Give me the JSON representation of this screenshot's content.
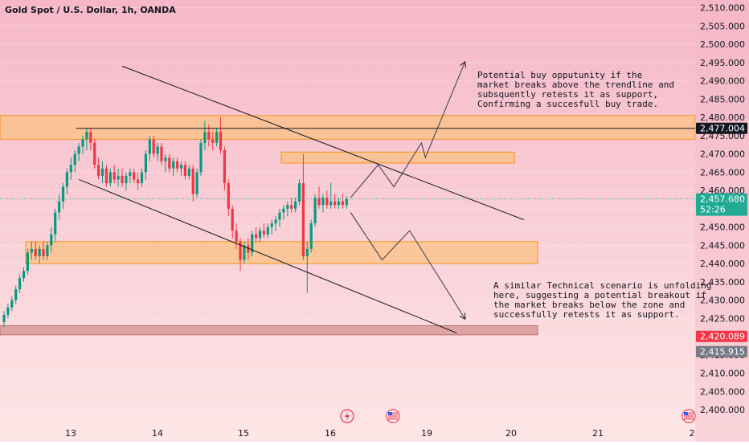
{
  "header": {
    "title": "Gold Spot / U.S. Dollar, 1h, OANDA"
  },
  "notes": {
    "buy": [
      "Potential buy opputunity if the",
      "market breaks above the trendline and",
      "subsquently retests it as support,",
      "Confirming a succesfull buy trade."
    ],
    "sell": [
      "A similar Technical scenario is unfolding",
      "here, suggesting a potential breakout if",
      "the market breaks below the zone and",
      "successfully retests it as support."
    ]
  },
  "price_labels": {
    "resistance": "2,477.004",
    "current": "2,457.680",
    "countdown": "52:26",
    "red": "2,420.089",
    "gray": "2,415.915"
  },
  "colors": {
    "bg_top": "#f6b8c8",
    "bg_bottom": "#fde6e6",
    "zone_orange": "#fbbf6f",
    "zone_border": "#f7931a",
    "zone_red": "#d89a9a",
    "candle_up": "#089981",
    "candle_down": "#f23645",
    "line": "#131722",
    "current_label": "#22ab94",
    "red_label": "#f23645",
    "gray_label": "#787b86"
  },
  "icons": [
    "lightning-icon",
    "us-flag-icon",
    "us-flag-icon"
  ],
  "chart_data": {
    "type": "candlestick",
    "title": "Gold Spot / U.S. Dollar, 1h, OANDA",
    "x_ticks": [
      "13",
      "14",
      "15",
      "16",
      "19",
      "20",
      "21",
      "2"
    ],
    "y_ticks": [
      "2,400.000",
      "2,405.000",
      "2,410.000",
      "2,415.000",
      "2,420.000",
      "2,425.000",
      "2,430.000",
      "2,435.000",
      "2,440.000",
      "2,445.000",
      "2,450.000",
      "2,455.000",
      "2,460.000",
      "2,465.000",
      "2,470.000",
      "2,475.000",
      "2,480.000",
      "2,485.000",
      "2,490.000",
      "2,495.000",
      "2,500.000",
      "2,505.000",
      "2,510.000"
    ],
    "ylim": [
      2398.5,
      2511
    ],
    "candles": [
      {
        "i": 0,
        "o": 2424.0,
        "h": 2427.0,
        "l": 2422.5,
        "c": 2426.0
      },
      {
        "i": 1,
        "o": 2426.0,
        "h": 2429.0,
        "l": 2425.0,
        "c": 2428.0
      },
      {
        "i": 2,
        "o": 2428.0,
        "h": 2431.0,
        "l": 2427.0,
        "c": 2430.0
      },
      {
        "i": 3,
        "o": 2430.0,
        "h": 2434.0,
        "l": 2429.0,
        "c": 2433.0
      },
      {
        "i": 4,
        "o": 2433.0,
        "h": 2437.0,
        "l": 2432.0,
        "c": 2436.0
      },
      {
        "i": 5,
        "o": 2436.0,
        "h": 2439.0,
        "l": 2435.0,
        "c": 2438.0
      },
      {
        "i": 6,
        "o": 2438.0,
        "h": 2444.0,
        "l": 2437.0,
        "c": 2443.0
      },
      {
        "i": 7,
        "o": 2443.0,
        "h": 2446.0,
        "l": 2441.0,
        "c": 2444.0
      },
      {
        "i": 8,
        "o": 2444.0,
        "h": 2446.0,
        "l": 2441.0,
        "c": 2442.0
      },
      {
        "i": 9,
        "o": 2442.0,
        "h": 2445.0,
        "l": 2440.0,
        "c": 2444.0
      },
      {
        "i": 10,
        "o": 2444.0,
        "h": 2446.0,
        "l": 2441.0,
        "c": 2442.0
      },
      {
        "i": 11,
        "o": 2442.0,
        "h": 2446.0,
        "l": 2441.0,
        "c": 2445.0
      },
      {
        "i": 12,
        "o": 2445.0,
        "h": 2450.0,
        "l": 2443.0,
        "c": 2448.0
      },
      {
        "i": 13,
        "o": 2448.0,
        "h": 2455.0,
        "l": 2446.0,
        "c": 2454.0
      },
      {
        "i": 14,
        "o": 2454.0,
        "h": 2459.0,
        "l": 2452.0,
        "c": 2457.0
      },
      {
        "i": 15,
        "o": 2457.0,
        "h": 2462.0,
        "l": 2455.0,
        "c": 2461.0
      },
      {
        "i": 16,
        "o": 2461.0,
        "h": 2466.0,
        "l": 2459.0,
        "c": 2465.0
      },
      {
        "i": 17,
        "o": 2465.0,
        "h": 2469.0,
        "l": 2463.0,
        "c": 2467.0
      },
      {
        "i": 18,
        "o": 2467.0,
        "h": 2471.0,
        "l": 2465.0,
        "c": 2470.0
      },
      {
        "i": 19,
        "o": 2470.0,
        "h": 2473.0,
        "l": 2468.0,
        "c": 2472.0
      },
      {
        "i": 20,
        "o": 2472.0,
        "h": 2475.0,
        "l": 2470.0,
        "c": 2474.0
      },
      {
        "i": 21,
        "o": 2474.0,
        "h": 2477.0,
        "l": 2471.0,
        "c": 2476.0
      },
      {
        "i": 22,
        "o": 2476.0,
        "h": 2477.0,
        "l": 2471.0,
        "c": 2473.0
      },
      {
        "i": 23,
        "o": 2473.0,
        "h": 2474.0,
        "l": 2466.0,
        "c": 2467.0
      },
      {
        "i": 24,
        "o": 2467.0,
        "h": 2469.0,
        "l": 2463.0,
        "c": 2464.0
      },
      {
        "i": 25,
        "o": 2464.0,
        "h": 2468.0,
        "l": 2462.0,
        "c": 2466.0
      },
      {
        "i": 26,
        "o": 2466.0,
        "h": 2467.0,
        "l": 2461.0,
        "c": 2462.0
      },
      {
        "i": 27,
        "o": 2462.0,
        "h": 2466.0,
        "l": 2461.0,
        "c": 2465.0
      },
      {
        "i": 28,
        "o": 2465.0,
        "h": 2467.0,
        "l": 2462.0,
        "c": 2463.0
      },
      {
        "i": 29,
        "o": 2463.0,
        "h": 2466.0,
        "l": 2461.0,
        "c": 2464.0
      },
      {
        "i": 30,
        "o": 2464.0,
        "h": 2466.0,
        "l": 2461.0,
        "c": 2462.0
      },
      {
        "i": 31,
        "o": 2462.0,
        "h": 2465.0,
        "l": 2460.0,
        "c": 2464.0
      },
      {
        "i": 32,
        "o": 2464.0,
        "h": 2466.0,
        "l": 2462.0,
        "c": 2465.0
      },
      {
        "i": 33,
        "o": 2465.0,
        "h": 2466.0,
        "l": 2462.0,
        "c": 2463.0
      },
      {
        "i": 34,
        "o": 2463.0,
        "h": 2465.0,
        "l": 2460.0,
        "c": 2462.0
      },
      {
        "i": 35,
        "o": 2462.0,
        "h": 2466.0,
        "l": 2461.0,
        "c": 2465.0
      },
      {
        "i": 36,
        "o": 2465.0,
        "h": 2471.0,
        "l": 2463.0,
        "c": 2470.0
      },
      {
        "i": 37,
        "o": 2470.0,
        "h": 2475.0,
        "l": 2468.0,
        "c": 2474.0
      },
      {
        "i": 38,
        "o": 2474.0,
        "h": 2475.0,
        "l": 2469.0,
        "c": 2470.0
      },
      {
        "i": 39,
        "o": 2470.0,
        "h": 2473.0,
        "l": 2468.0,
        "c": 2472.0
      },
      {
        "i": 40,
        "o": 2472.0,
        "h": 2473.0,
        "l": 2467.0,
        "c": 2468.0
      },
      {
        "i": 41,
        "o": 2468.0,
        "h": 2470.0,
        "l": 2465.0,
        "c": 2469.0
      },
      {
        "i": 42,
        "o": 2469.0,
        "h": 2470.0,
        "l": 2465.0,
        "c": 2466.0
      },
      {
        "i": 43,
        "o": 2466.0,
        "h": 2469.0,
        "l": 2464.0,
        "c": 2468.0
      },
      {
        "i": 44,
        "o": 2468.0,
        "h": 2469.0,
        "l": 2465.0,
        "c": 2466.0
      },
      {
        "i": 45,
        "o": 2466.0,
        "h": 2468.0,
        "l": 2464.0,
        "c": 2467.0
      },
      {
        "i": 46,
        "o": 2467.0,
        "h": 2468.0,
        "l": 2463.0,
        "c": 2464.0
      },
      {
        "i": 47,
        "o": 2464.0,
        "h": 2467.0,
        "l": 2463.0,
        "c": 2466.0
      },
      {
        "i": 48,
        "o": 2466.0,
        "h": 2467.0,
        "l": 2457.0,
        "c": 2459.0
      },
      {
        "i": 49,
        "o": 2459.0,
        "h": 2466.0,
        "l": 2458.0,
        "c": 2465.0
      },
      {
        "i": 50,
        "o": 2465.0,
        "h": 2474.0,
        "l": 2464.0,
        "c": 2473.0
      },
      {
        "i": 51,
        "o": 2473.0,
        "h": 2479.0,
        "l": 2471.0,
        "c": 2476.0
      },
      {
        "i": 52,
        "o": 2476.0,
        "h": 2478.0,
        "l": 2472.0,
        "c": 2474.0
      },
      {
        "i": 53,
        "o": 2474.0,
        "h": 2476.0,
        "l": 2471.0,
        "c": 2473.0
      },
      {
        "i": 54,
        "o": 2473.0,
        "h": 2477.0,
        "l": 2472.0,
        "c": 2476.0
      },
      {
        "i": 55,
        "o": 2476.0,
        "h": 2480.0,
        "l": 2470.0,
        "c": 2471.0
      },
      {
        "i": 56,
        "o": 2471.0,
        "h": 2472.0,
        "l": 2460.0,
        "c": 2462.0
      },
      {
        "i": 57,
        "o": 2462.0,
        "h": 2463.0,
        "l": 2453.0,
        "c": 2455.0
      },
      {
        "i": 58,
        "o": 2455.0,
        "h": 2456.0,
        "l": 2447.0,
        "c": 2449.0
      },
      {
        "i": 59,
        "o": 2449.0,
        "h": 2451.0,
        "l": 2444.0,
        "c": 2446.0
      },
      {
        "i": 60,
        "o": 2446.0,
        "h": 2447.0,
        "l": 2438.0,
        "c": 2441.0
      },
      {
        "i": 61,
        "o": 2441.0,
        "h": 2446.0,
        "l": 2440.0,
        "c": 2445.0
      },
      {
        "i": 62,
        "o": 2445.0,
        "h": 2447.0,
        "l": 2441.0,
        "c": 2443.0
      },
      {
        "i": 63,
        "o": 2443.0,
        "h": 2449.0,
        "l": 2442.0,
        "c": 2448.0
      },
      {
        "i": 64,
        "o": 2448.0,
        "h": 2450.0,
        "l": 2446.0,
        "c": 2447.0
      },
      {
        "i": 65,
        "o": 2447.0,
        "h": 2450.0,
        "l": 2446.0,
        "c": 2449.0
      },
      {
        "i": 66,
        "o": 2449.0,
        "h": 2451.0,
        "l": 2447.0,
        "c": 2448.0
      },
      {
        "i": 67,
        "o": 2448.0,
        "h": 2451.0,
        "l": 2447.0,
        "c": 2450.0
      },
      {
        "i": 68,
        "o": 2450.0,
        "h": 2452.0,
        "l": 2448.0,
        "c": 2451.0
      },
      {
        "i": 69,
        "o": 2451.0,
        "h": 2453.0,
        "l": 2449.0,
        "c": 2452.0
      },
      {
        "i": 70,
        "o": 2452.0,
        "h": 2455.0,
        "l": 2450.0,
        "c": 2454.0
      },
      {
        "i": 71,
        "o": 2454.0,
        "h": 2456.0,
        "l": 2452.0,
        "c": 2455.0
      },
      {
        "i": 72,
        "o": 2455.0,
        "h": 2457.0,
        "l": 2453.0,
        "c": 2456.0
      },
      {
        "i": 73,
        "o": 2456.0,
        "h": 2458.0,
        "l": 2454.0,
        "c": 2455.0
      },
      {
        "i": 74,
        "o": 2455.0,
        "h": 2458.0,
        "l": 2454.0,
        "c": 2457.0
      },
      {
        "i": 75,
        "o": 2457.0,
        "h": 2463.0,
        "l": 2456.0,
        "c": 2462.0
      },
      {
        "i": 76,
        "o": 2462.0,
        "h": 2470.0,
        "l": 2441.0,
        "c": 2442.0
      },
      {
        "i": 77,
        "o": 2442.0,
        "h": 2446.0,
        "l": 2432.0,
        "c": 2444.0
      },
      {
        "i": 78,
        "o": 2444.0,
        "h": 2452.0,
        "l": 2443.0,
        "c": 2451.0
      },
      {
        "i": 79,
        "o": 2451.0,
        "h": 2459.0,
        "l": 2450.0,
        "c": 2458.0
      },
      {
        "i": 80,
        "o": 2458.0,
        "h": 2461.0,
        "l": 2455.0,
        "c": 2456.0
      },
      {
        "i": 81,
        "o": 2456.0,
        "h": 2459.0,
        "l": 2454.0,
        "c": 2458.0
      },
      {
        "i": 82,
        "o": 2458.0,
        "h": 2460.0,
        "l": 2455.0,
        "c": 2456.0
      },
      {
        "i": 83,
        "o": 2456.0,
        "h": 2462.0,
        "l": 2455.0,
        "c": 2457.0
      },
      {
        "i": 84,
        "o": 2457.0,
        "h": 2459.0,
        "l": 2455.0,
        "c": 2456.0
      },
      {
        "i": 85,
        "o": 2456.0,
        "h": 2458.0,
        "l": 2455.0,
        "c": 2457.0
      },
      {
        "i": 86,
        "o": 2457.0,
        "h": 2459.0,
        "l": 2455.0,
        "c": 2456.0
      },
      {
        "i": 87,
        "o": 2456.0,
        "h": 2458.5,
        "l": 2455.0,
        "c": 2457.7
      }
    ],
    "zones": [
      {
        "name": "resistance-zone",
        "from": 2474,
        "to": 2480.5,
        "color": "orange"
      },
      {
        "name": "upper-small-zone",
        "from": 2467.5,
        "to": 2470.5,
        "color": "orange"
      },
      {
        "name": "support-zone",
        "from": 2440,
        "to": 2446,
        "color": "orange"
      },
      {
        "name": "bottom-zone",
        "from": 2420.5,
        "to": 2423,
        "color": "red"
      }
    ],
    "horizontal_lines": [
      2477.004
    ],
    "trendlines": [
      {
        "name": "upper-trendline",
        "from": {
          "i": 30,
          "p": 2494
        },
        "to": {
          "i": 132,
          "p": 2452
        }
      },
      {
        "name": "lower-trendline",
        "from": {
          "i": 19,
          "p": 2463
        },
        "to": {
          "i": 115,
          "p": 2421
        }
      }
    ],
    "projections": [
      {
        "name": "bullish-projection",
        "points": [
          {
            "i": 88,
            "p": 2458
          },
          {
            "i": 95,
            "p": 2467
          },
          {
            "i": 99,
            "p": 2461
          },
          {
            "i": 106,
            "p": 2473
          },
          {
            "i": 107,
            "p": 2469
          },
          {
            "i": 117,
            "p": 2495
          }
        ]
      },
      {
        "name": "bearish-projection",
        "points": [
          {
            "i": 88,
            "p": 2454
          },
          {
            "i": 96,
            "p": 2441
          },
          {
            "i": 103,
            "p": 2449
          },
          {
            "i": 117,
            "p": 2425
          }
        ]
      }
    ],
    "last_price": 2457.68
  }
}
